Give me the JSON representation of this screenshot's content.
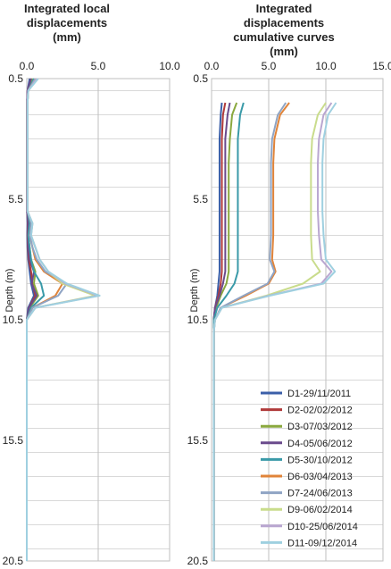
{
  "chart_data": [
    {
      "type": "line",
      "title": [
        "Integrated local",
        "displacements",
        "(mm)"
      ],
      "xlim": [
        0,
        10
      ],
      "xticks": [
        "0.0",
        "5.0",
        "10.0"
      ],
      "ylabel": "Depth (m)",
      "ylim": [
        0.5,
        20.5
      ],
      "yticks": [
        "0.5",
        "5.5",
        "10.5",
        "15.5",
        "20.5"
      ],
      "grid": "horizontal lines every 1 m, vertical at x ticks",
      "depth": [
        0.5,
        1.0,
        1.5,
        2.0,
        2.5,
        3.0,
        3.5,
        4.0,
        4.5,
        5.0,
        5.5,
        6.0,
        6.5,
        7.0,
        7.5,
        8.0,
        8.5,
        9.0,
        9.5,
        10.0,
        10.5,
        11.0,
        12.0,
        13.0,
        14.0,
        15.0,
        16.0,
        17.0,
        18.0,
        19.0,
        20.0,
        20.5
      ],
      "series": [
        {
          "name": "D1-29/11/2011",
          "values": [
            0.2,
            0.05,
            0.02,
            0.02,
            0.02,
            0.02,
            0.02,
            0.02,
            0.02,
            0.02,
            0.02,
            0.02,
            0.05,
            0.03,
            0.05,
            0.1,
            0.2,
            0.3,
            0.5,
            0.1,
            0,
            0,
            0,
            0,
            0,
            0,
            0,
            0,
            0,
            0,
            0,
            0
          ]
        },
        {
          "name": "D2-02/02/2012",
          "values": [
            0.3,
            0.05,
            0.02,
            0.02,
            0.02,
            0.02,
            0.02,
            0.02,
            0.02,
            0.02,
            0.02,
            0.02,
            0.08,
            0.05,
            0.08,
            0.15,
            0.3,
            0.4,
            0.6,
            0.15,
            0,
            0,
            0,
            0,
            0,
            0,
            0,
            0,
            0,
            0,
            0,
            0
          ]
        },
        {
          "name": "D3-07/03/2012",
          "values": [
            0.4,
            0.1,
            0.03,
            0.03,
            0.03,
            0.03,
            0.03,
            0.03,
            0.03,
            0.03,
            0.03,
            0.05,
            0.15,
            0.1,
            0.2,
            0.3,
            0.6,
            0.5,
            0.8,
            0.2,
            0,
            0,
            0,
            0,
            0,
            0,
            0,
            0,
            0,
            0,
            0,
            0
          ]
        },
        {
          "name": "D4-05/06/2012",
          "values": [
            0.3,
            0.05,
            0.02,
            0.02,
            0.02,
            0.02,
            0.02,
            0.02,
            0.02,
            0.02,
            0.02,
            0.02,
            0.1,
            0.08,
            0.1,
            0.2,
            0.5,
            0.35,
            0.7,
            0.15,
            0,
            0,
            0,
            0,
            0,
            0,
            0,
            0,
            0,
            0,
            0,
            0
          ]
        },
        {
          "name": "D5-30/10/2012",
          "values": [
            0.5,
            0.1,
            0.05,
            0.05,
            0.05,
            0.05,
            0.05,
            0.05,
            0.05,
            0.05,
            0.05,
            0.05,
            0.2,
            0.1,
            0.2,
            0.3,
            0.5,
            1.0,
            1.2,
            0.3,
            0,
            0,
            0,
            0,
            0,
            0,
            0,
            0,
            0,
            0,
            0,
            0
          ]
        },
        {
          "name": "D6-03/04/2013",
          "values": [
            0.6,
            0.1,
            0.05,
            0.05,
            0.05,
            0.05,
            0.05,
            0.05,
            0.05,
            0.05,
            0.05,
            0.05,
            0.3,
            0.2,
            0.4,
            0.6,
            1.2,
            2.5,
            2.0,
            0.4,
            0,
            0,
            0,
            0,
            0,
            0,
            0,
            0,
            0,
            0,
            0,
            0
          ]
        },
        {
          "name": "D7-24/06/2013",
          "values": [
            0.6,
            0.1,
            0.05,
            0.05,
            0.05,
            0.05,
            0.05,
            0.05,
            0.05,
            0.05,
            0.05,
            0.05,
            0.3,
            0.2,
            0.4,
            0.7,
            1.3,
            2.8,
            2.2,
            0.4,
            0,
            0,
            0,
            0,
            0,
            0,
            0,
            0,
            0,
            0,
            0,
            0
          ]
        },
        {
          "name": "D9-06/02/2014",
          "values": [
            0.7,
            0.1,
            0.05,
            0.05,
            0.05,
            0.05,
            0.05,
            0.05,
            0.05,
            0.05,
            0.05,
            0.05,
            0.4,
            0.3,
            0.6,
            0.9,
            1.5,
            2.5,
            4.8,
            0.6,
            0,
            0,
            0,
            0,
            0,
            0,
            0,
            0,
            0,
            0,
            0,
            0
          ]
        },
        {
          "name": "D10-25/06/2014",
          "values": [
            0.7,
            0.1,
            0.05,
            0.05,
            0.05,
            0.05,
            0.05,
            0.05,
            0.05,
            0.05,
            0.05,
            0.05,
            0.4,
            0.3,
            0.6,
            0.9,
            1.5,
            2.7,
            5.0,
            0.6,
            0,
            0,
            0,
            0,
            0,
            0,
            0,
            0,
            0,
            0,
            0,
            0
          ]
        },
        {
          "name": "D11-09/12/2014",
          "values": [
            0.8,
            0.1,
            0.05,
            0.05,
            0.05,
            0.05,
            0.05,
            0.05,
            0.05,
            0.05,
            0.05,
            0.05,
            0.4,
            0.3,
            0.6,
            0.9,
            1.5,
            2.8,
            5.1,
            0.6,
            0,
            0,
            0,
            0,
            0,
            0,
            0,
            0,
            0,
            0,
            0,
            0
          ]
        }
      ]
    },
    {
      "type": "line",
      "title": [
        "Integrated",
        "displacements",
        "cumulative curves",
        "(mm)"
      ],
      "xlim": [
        0,
        15
      ],
      "xticks": [
        "0.0",
        "5.0",
        "10.0",
        "15.0"
      ],
      "ylabel": "Depth (m)",
      "ylim": [
        0.5,
        20.5
      ],
      "yticks": [
        "0.5",
        "5.5",
        "10.5",
        "15.5",
        "20.5"
      ],
      "grid": "horizontal lines every 1 m, vertical at x ticks",
      "legend": "bottom-right",
      "depth": [
        1.5,
        2.0,
        3.0,
        4.0,
        5.0,
        6.0,
        7.0,
        8.0,
        8.5,
        9.0,
        9.5,
        10.0,
        10.5,
        11.0,
        12.0,
        13.0,
        14.0,
        15.0,
        16.0,
        17.0,
        18.0,
        19.0,
        20.0,
        20.5
      ],
      "series": [
        {
          "name": "D1-29/11/2011",
          "values": [
            0.9,
            0.8,
            0.7,
            0.7,
            0.7,
            0.7,
            0.7,
            0.7,
            0.7,
            0.6,
            0.5,
            0.3,
            0.2,
            0.2,
            0.2,
            0.2,
            0.2,
            0.2,
            0.2,
            0.2,
            0.2,
            0.2,
            0.2,
            0.2
          ]
        },
        {
          "name": "D2-02/02/2012",
          "values": [
            1.2,
            1.0,
            0.9,
            0.9,
            0.9,
            0.9,
            0.9,
            0.9,
            0.9,
            0.8,
            0.6,
            0.3,
            0.2,
            0.2,
            0.2,
            0.2,
            0.2,
            0.2,
            0.2,
            0.2,
            0.2,
            0.2,
            0.2,
            0.2
          ]
        },
        {
          "name": "D3-07/03/2012",
          "values": [
            2.2,
            1.8,
            1.6,
            1.5,
            1.5,
            1.5,
            1.5,
            1.5,
            1.5,
            1.3,
            0.8,
            0.4,
            0.2,
            0.2,
            0.2,
            0.2,
            0.2,
            0.2,
            0.2,
            0.2,
            0.2,
            0.2,
            0.2,
            0.2
          ]
        },
        {
          "name": "D4-05/06/2012",
          "values": [
            1.6,
            1.4,
            1.2,
            1.2,
            1.2,
            1.2,
            1.2,
            1.2,
            1.2,
            1.0,
            0.7,
            0.3,
            0.2,
            0.2,
            0.2,
            0.2,
            0.2,
            0.2,
            0.2,
            0.2,
            0.2,
            0.2,
            0.2,
            0.2
          ]
        },
        {
          "name": "D5-30/10/2012",
          "values": [
            2.8,
            2.5,
            2.3,
            2.3,
            2.3,
            2.3,
            2.3,
            2.3,
            2.3,
            2.0,
            1.3,
            0.5,
            0.2,
            0.2,
            0.2,
            0.2,
            0.2,
            0.2,
            0.2,
            0.2,
            0.2,
            0.2,
            0.2,
            0.2
          ]
        },
        {
          "name": "D6-03/04/2013",
          "values": [
            6.8,
            6.0,
            5.5,
            5.4,
            5.4,
            5.4,
            5.4,
            5.3,
            5.6,
            5.0,
            3.0,
            0.8,
            0.3,
            0.2,
            0.2,
            0.2,
            0.2,
            0.2,
            0.2,
            0.2,
            0.2,
            0.2,
            0.2,
            0.2
          ]
        },
        {
          "name": "D7-24/06/2013",
          "values": [
            6.5,
            5.8,
            5.3,
            5.2,
            5.2,
            5.2,
            5.2,
            5.1,
            5.5,
            4.9,
            2.8,
            0.8,
            0.3,
            0.2,
            0.2,
            0.2,
            0.2,
            0.2,
            0.2,
            0.2,
            0.2,
            0.2,
            0.2,
            0.2
          ]
        },
        {
          "name": "D9-06/02/2014",
          "values": [
            10.0,
            9.3,
            8.8,
            8.7,
            8.7,
            8.7,
            8.7,
            8.8,
            9.5,
            8.0,
            4.8,
            0.9,
            0.3,
            0.2,
            0.2,
            0.2,
            0.2,
            0.2,
            0.2,
            0.2,
            0.2,
            0.2,
            0.2,
            0.2
          ]
        },
        {
          "name": "D10-25/06/2014",
          "values": [
            10.5,
            9.8,
            9.4,
            9.3,
            9.3,
            9.3,
            9.4,
            9.6,
            10.5,
            9.6,
            5.0,
            0.9,
            0.3,
            0.2,
            0.2,
            0.2,
            0.2,
            0.2,
            0.2,
            0.2,
            0.2,
            0.2,
            0.2,
            0.2
          ]
        },
        {
          "name": "D11-09/12/2014",
          "values": [
            10.9,
            10.2,
            9.8,
            9.7,
            9.7,
            9.7,
            9.8,
            10.0,
            10.8,
            9.8,
            5.1,
            0.9,
            0.3,
            0.2,
            0.2,
            0.2,
            0.2,
            0.2,
            0.2,
            0.2,
            0.2,
            0.2,
            0.2,
            0.2
          ]
        }
      ]
    }
  ],
  "series_colors": [
    "#3b5fa8",
    "#b03a3a",
    "#8aa83e",
    "#6a4a8c",
    "#3a9aa8",
    "#e0843a",
    "#8fa4c4",
    "#c9dc8c",
    "#b9a6d0",
    "#9fd0e0"
  ]
}
